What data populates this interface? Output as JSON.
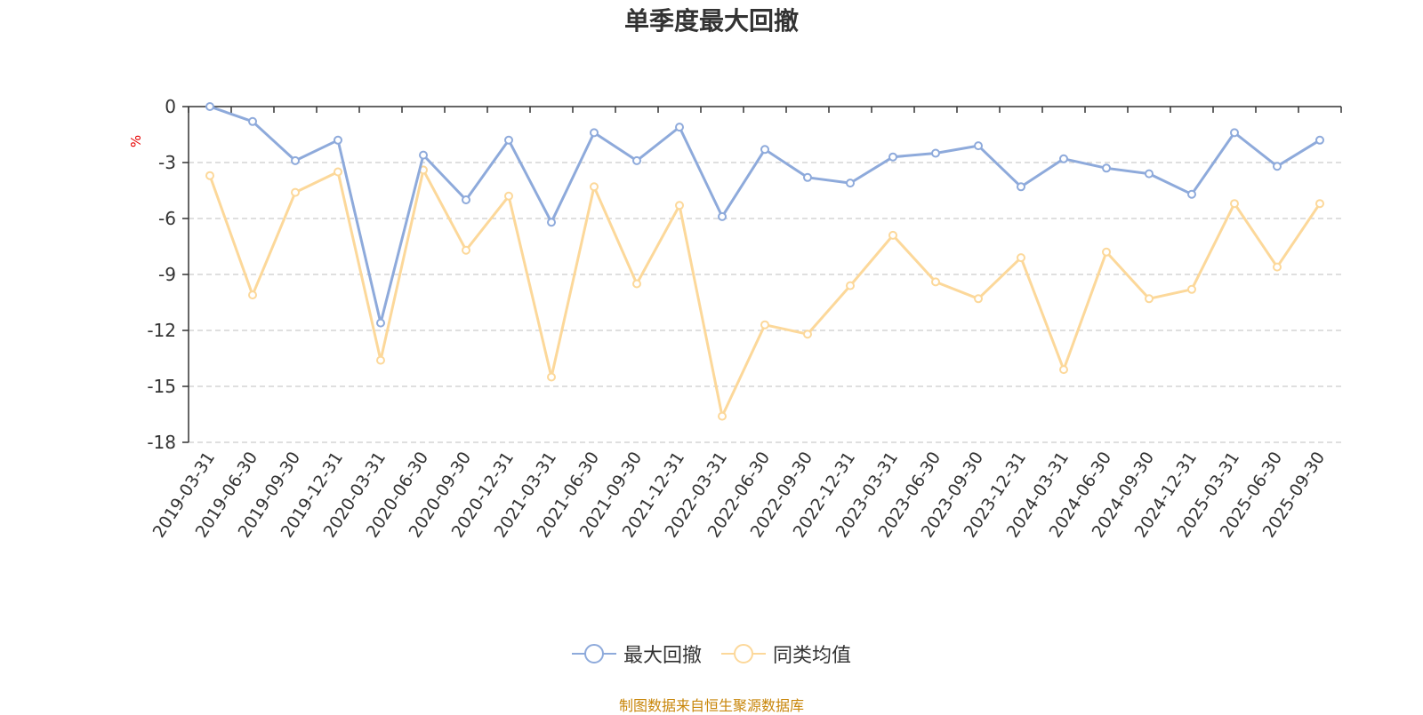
{
  "chart_data": {
    "type": "line",
    "title": "单季度最大回撤",
    "ylabel": "%",
    "ylim": [
      -18,
      0
    ],
    "yticks": [
      0,
      -3,
      -6,
      -9,
      -12,
      -15,
      -18
    ],
    "grid": true,
    "legend_position": "bottom-center",
    "x": [
      "2019-03-31",
      "2019-06-30",
      "2019-09-30",
      "2019-12-31",
      "2020-03-31",
      "2020-06-30",
      "2020-09-30",
      "2020-12-31",
      "2021-03-31",
      "2021-06-30",
      "2021-09-30",
      "2021-12-31",
      "2022-03-31",
      "2022-06-30",
      "2022-09-30",
      "2022-12-31",
      "2023-03-31",
      "2023-06-30",
      "2023-09-30",
      "2023-12-31",
      "2024-03-31",
      "2024-06-30",
      "2024-09-30",
      "2024-12-31",
      "2025-03-31",
      "2025-06-30",
      "2025-09-30"
    ],
    "series": [
      {
        "name": "最大回撤",
        "color": "#8eaadb",
        "values": [
          0.0,
          -0.8,
          -2.9,
          -1.8,
          -11.6,
          -2.6,
          -5.0,
          -1.8,
          -6.2,
          -1.4,
          -2.9,
          -1.1,
          -5.9,
          -2.3,
          -3.8,
          -4.1,
          -2.7,
          -2.5,
          -2.1,
          -4.3,
          -2.8,
          -3.3,
          -3.6,
          -4.7,
          -1.4,
          -3.2,
          -1.8
        ]
      },
      {
        "name": "同类均值",
        "color": "#fcd89a",
        "values": [
          -3.7,
          -10.1,
          -4.6,
          -3.5,
          -13.6,
          -3.4,
          -7.7,
          -4.8,
          -14.5,
          -4.3,
          -9.5,
          -5.3,
          -16.6,
          -11.7,
          -12.2,
          -9.6,
          -6.9,
          -9.4,
          -10.3,
          -8.1,
          -14.1,
          -7.8,
          -10.3,
          -9.8,
          -5.2,
          -8.6,
          -5.2
        ]
      }
    ]
  },
  "footer": {
    "source": "制图数据来自恒生聚源数据库"
  }
}
